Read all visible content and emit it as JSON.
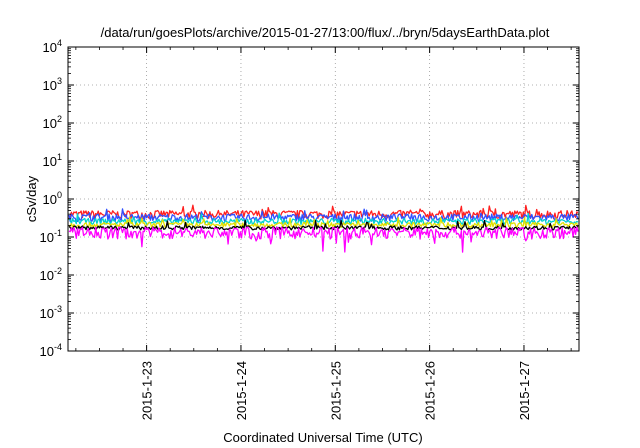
{
  "chart_data": {
    "type": "line",
    "title": "/data/run/goesPlots/archive/2015-01-27/13:00/flux/../bryn/5daysEarthData.plot",
    "xlabel": "Coordinated Universal Time (UTC)",
    "ylabel": "cSv/day",
    "yscale": "log",
    "ylim": [
      0.0001,
      10000
    ],
    "y_ticks": [
      {
        "base": "10",
        "exp": "-4",
        "value": 0.0001
      },
      {
        "base": "10",
        "exp": "-3",
        "value": 0.001
      },
      {
        "base": "10",
        "exp": "-2",
        "value": 0.01
      },
      {
        "base": "10",
        "exp": "-1",
        "value": 0.1
      },
      {
        "base": "10",
        "exp": "0",
        "value": 1
      },
      {
        "base": "10",
        "exp": "1",
        "value": 10
      },
      {
        "base": "10",
        "exp": "2",
        "value": 100
      },
      {
        "base": "10",
        "exp": "3",
        "value": 1000
      },
      {
        "base": "10",
        "exp": "4",
        "value": 10000
      }
    ],
    "xlim": [
      "2015-01-22T04:00",
      "2015-01-27T14:00"
    ],
    "x_ticks": [
      "2015-1-23",
      "2015-1-24",
      "2015-1-25",
      "2015-1-26",
      "2015-1-27"
    ],
    "grid": true,
    "series": [
      {
        "color": "#ff2020",
        "level": 0.4,
        "spread": 0.25
      },
      {
        "color": "#3050ff",
        "level": 0.33,
        "spread": 0.22
      },
      {
        "color": "#00d0d0",
        "level": 0.26,
        "spread": 0.18
      },
      {
        "color": "#e0e000",
        "level": 0.21,
        "spread": 0.15
      },
      {
        "color": "#000000",
        "level": 0.175,
        "spread": 0.12
      },
      {
        "color": "#ff00ff",
        "level": 0.135,
        "spread": 0.35
      }
    ]
  }
}
